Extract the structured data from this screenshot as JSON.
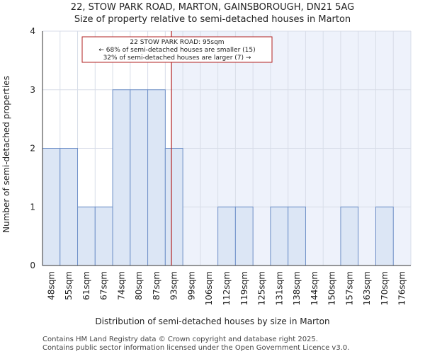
{
  "chart_data": {
    "type": "bar",
    "title": "22, STOW PARK ROAD, MARTON, GAINSBOROUGH, DN21 5AG",
    "subtitle": "Size of property relative to semi-detached houses in Marton",
    "xlabel": "Distribution of semi-detached houses by size in Marton",
    "ylabel": "Number of semi-detached properties",
    "categories": [
      "48sqm",
      "55sqm",
      "61sqm",
      "67sqm",
      "74sqm",
      "80sqm",
      "87sqm",
      "93sqm",
      "99sqm",
      "106sqm",
      "112sqm",
      "119sqm",
      "125sqm",
      "131sqm",
      "138sqm",
      "144sqm",
      "150sqm",
      "157sqm",
      "163sqm",
      "170sqm",
      "176sqm"
    ],
    "values": [
      2,
      2,
      1,
      1,
      3,
      3,
      3,
      2,
      0,
      0,
      1,
      1,
      0,
      1,
      1,
      0,
      0,
      1,
      0,
      1,
      0
    ],
    "ylim": [
      0,
      4
    ],
    "yticks": [
      0,
      1,
      2,
      3,
      4
    ],
    "grid": true,
    "marker": {
      "value_sqm": 95,
      "bin_position": 7.35,
      "color": "#b22222"
    },
    "annotation": {
      "lines": [
        "22 STOW PARK ROAD: 95sqm",
        "← 68% of semi-detached houses are smaller (15)",
        "32% of semi-detached houses are larger (7) →"
      ],
      "border_color": "#b22222"
    },
    "colors": {
      "bar_fill": "#dce6f5",
      "bar_stroke": "#6f90c8",
      "shade_fill": "#eef2fb",
      "grid": "#d8dde8"
    }
  },
  "footer": {
    "line1": "Contains HM Land Registry data © Crown copyright and database right 2025.",
    "line2": "Contains public sector information licensed under the Open Government Licence v3.0."
  }
}
